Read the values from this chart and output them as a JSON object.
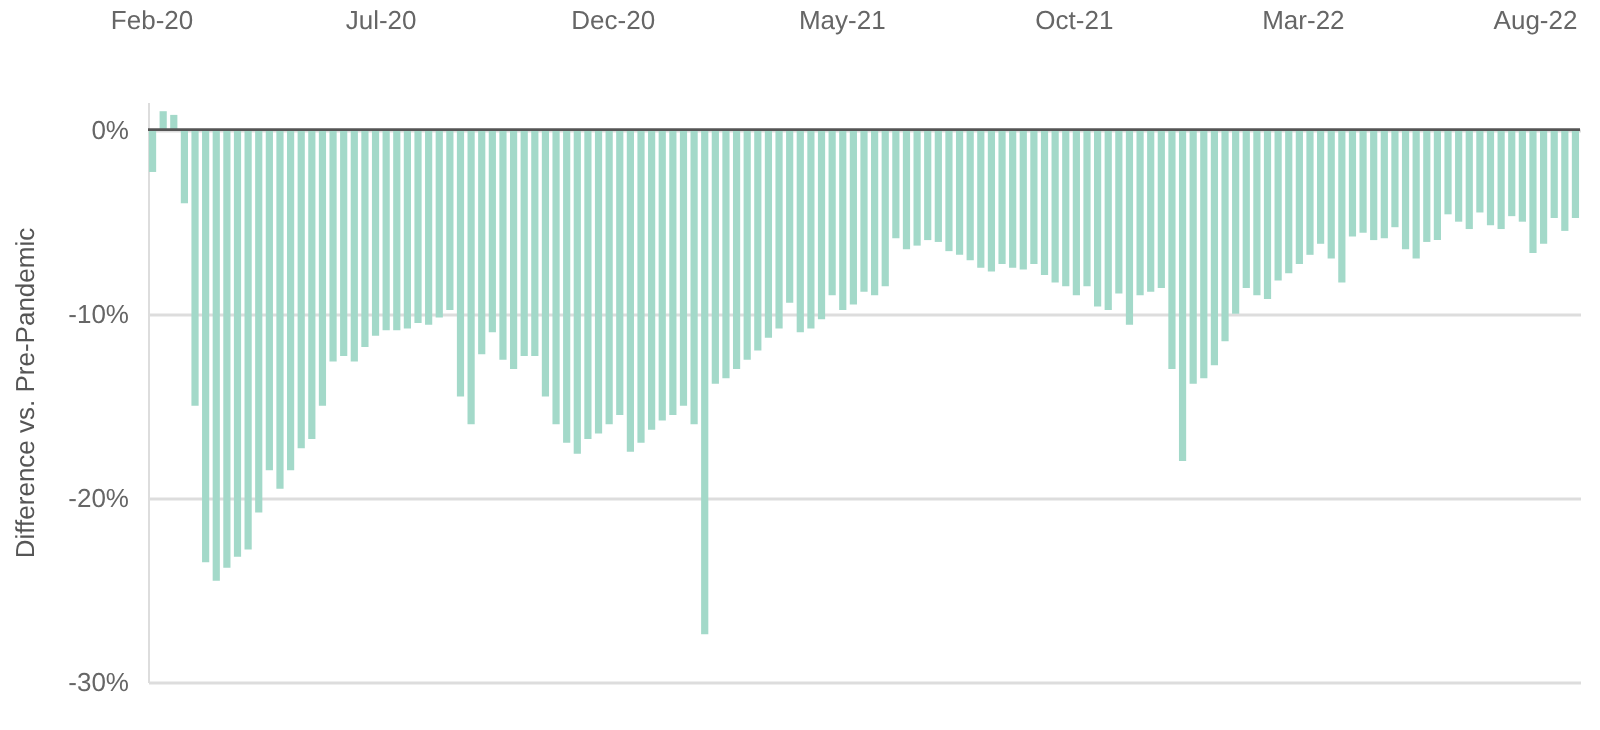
{
  "chart_data": {
    "type": "bar",
    "ylabel": "Difference vs. Pre-Pandemic",
    "color": "#a3d9c9",
    "x": [
      "2020-02-02",
      "2020-02-09",
      "2020-02-16",
      "2020-02-23",
      "2020-03-01",
      "2020-03-08",
      "2020-03-15",
      "2020-03-22",
      "2020-03-29",
      "2020-04-05",
      "2020-04-12",
      "2020-04-19",
      "2020-04-26",
      "2020-05-03",
      "2020-05-10",
      "2020-05-17",
      "2020-05-24",
      "2020-05-31",
      "2020-06-07",
      "2020-06-14",
      "2020-06-21",
      "2020-06-28",
      "2020-07-05",
      "2020-07-12",
      "2020-07-19",
      "2020-07-26",
      "2020-08-02",
      "2020-08-09",
      "2020-08-16",
      "2020-08-23",
      "2020-08-30",
      "2020-09-06",
      "2020-09-13",
      "2020-09-20",
      "2020-09-27",
      "2020-10-04",
      "2020-10-11",
      "2020-10-18",
      "2020-10-25",
      "2020-11-01",
      "2020-11-08",
      "2020-11-15",
      "2020-11-22",
      "2020-11-29",
      "2020-12-06",
      "2020-12-13",
      "2020-12-20",
      "2020-12-27",
      "2021-01-03",
      "2021-01-10",
      "2021-01-17",
      "2021-01-24",
      "2021-01-31",
      "2021-02-07",
      "2021-02-14",
      "2021-02-21",
      "2021-02-28",
      "2021-03-07",
      "2021-03-14",
      "2021-03-21",
      "2021-03-28",
      "2021-04-04",
      "2021-04-11",
      "2021-04-18",
      "2021-04-25",
      "2021-05-02",
      "2021-05-09",
      "2021-05-16",
      "2021-05-23",
      "2021-05-30",
      "2021-06-06",
      "2021-06-13",
      "2021-06-20",
      "2021-06-27",
      "2021-07-04",
      "2021-07-11",
      "2021-07-18",
      "2021-07-25",
      "2021-08-01",
      "2021-08-08",
      "2021-08-15",
      "2021-08-22",
      "2021-08-29",
      "2021-09-05",
      "2021-09-12",
      "2021-09-19",
      "2021-09-26",
      "2021-10-03",
      "2021-10-10",
      "2021-10-17",
      "2021-10-24",
      "2021-10-31",
      "2021-11-07",
      "2021-11-14",
      "2021-11-21",
      "2021-11-28",
      "2021-12-05",
      "2021-12-12",
      "2021-12-19",
      "2021-12-26",
      "2022-01-02",
      "2022-01-09",
      "2022-01-16",
      "2022-01-23",
      "2022-01-30",
      "2022-02-06",
      "2022-02-13",
      "2022-02-20",
      "2022-02-27",
      "2022-03-06",
      "2022-03-13",
      "2022-03-20",
      "2022-03-27",
      "2022-04-03",
      "2022-04-10",
      "2022-04-17",
      "2022-04-24",
      "2022-05-01",
      "2022-05-08",
      "2022-05-15",
      "2022-05-22",
      "2022-05-29",
      "2022-06-05",
      "2022-06-12",
      "2022-06-19",
      "2022-06-26",
      "2022-07-03",
      "2022-07-10",
      "2022-07-17",
      "2022-07-24",
      "2022-07-31",
      "2022-08-07",
      "2022-08-14",
      "2022-08-21",
      "2022-08-28"
    ],
    "values": [
      -2.3,
      1.0,
      0.8,
      -4,
      -15,
      -23.5,
      -24.5,
      -23.8,
      -23.2,
      -22.8,
      -20.8,
      -18.5,
      -19.5,
      -18.5,
      -17.3,
      -16.8,
      -15,
      -12.6,
      -12.3,
      -12.6,
      -11.8,
      -11.2,
      -10.9,
      -10.9,
      -10.8,
      -10.5,
      -10.6,
      -10.2,
      -9.8,
      -14.5,
      -16,
      -12.2,
      -11,
      -12.5,
      -13,
      -12.3,
      -12.3,
      -14.5,
      -16,
      -17,
      -17.6,
      -16.8,
      -16.5,
      -16,
      -15.5,
      -17.5,
      -17,
      -16.3,
      -15.8,
      -15.5,
      -15,
      -16,
      -27.4,
      -13.8,
      -13.5,
      -13,
      -12.5,
      -12,
      -11.3,
      -10.8,
      -9.4,
      -11,
      -10.8,
      -10.3,
      -9,
      -9.8,
      -9.5,
      -8.8,
      -9,
      -8.5,
      -5.9,
      -6.5,
      -6.3,
      -6,
      -6.1,
      -6.6,
      -6.8,
      -7.1,
      -7.5,
      -7.7,
      -7.3,
      -7.5,
      -7.6,
      -7.3,
      -7.9,
      -8.3,
      -8.5,
      -9,
      -8.5,
      -9.6,
      -9.8,
      -8.9,
      -10.6,
      -9,
      -8.8,
      -8.6,
      -13,
      -18,
      -13.8,
      -13.5,
      -12.8,
      -11.5,
      -10,
      -8.6,
      -9,
      -9.2,
      -8.2,
      -7.8,
      -7.3,
      -6.8,
      -6.2,
      -7,
      -8.3,
      -5.8,
      -5.6,
      -6,
      -5.9,
      -5.3,
      -6.5,
      -7,
      -6.1,
      -6,
      -4.6,
      -5,
      -5.4,
      -4.5,
      -5.2,
      -5.4,
      -4.7,
      -5,
      -6.7,
      -6.2,
      -4.8,
      -5.5,
      -4.8
    ],
    "xlim": [
      "2020-01-30",
      "2022-08-31"
    ],
    "xticks": [
      {
        "value": "2020-02-01",
        "label": "Feb-20"
      },
      {
        "value": "2020-07-01",
        "label": "Jul-20"
      },
      {
        "value": "2020-12-01",
        "label": "Dec-20"
      },
      {
        "value": "2021-05-01",
        "label": "May-21"
      },
      {
        "value": "2021-10-01",
        "label": "Oct-21"
      },
      {
        "value": "2022-03-01",
        "label": "Mar-22"
      },
      {
        "value": "2022-08-01",
        "label": "Aug-22"
      }
    ],
    "ylim": [
      -30,
      1.5
    ],
    "yticks": [
      {
        "value": 0,
        "label": "0%"
      },
      {
        "value": -10,
        "label": "-10%"
      },
      {
        "value": -20,
        "label": "-20%"
      },
      {
        "value": -30,
        "label": "-30%"
      }
    ],
    "grid": "y",
    "ref_lines": [
      {
        "axis": "y",
        "value": 0,
        "color": "#555555"
      }
    ]
  }
}
